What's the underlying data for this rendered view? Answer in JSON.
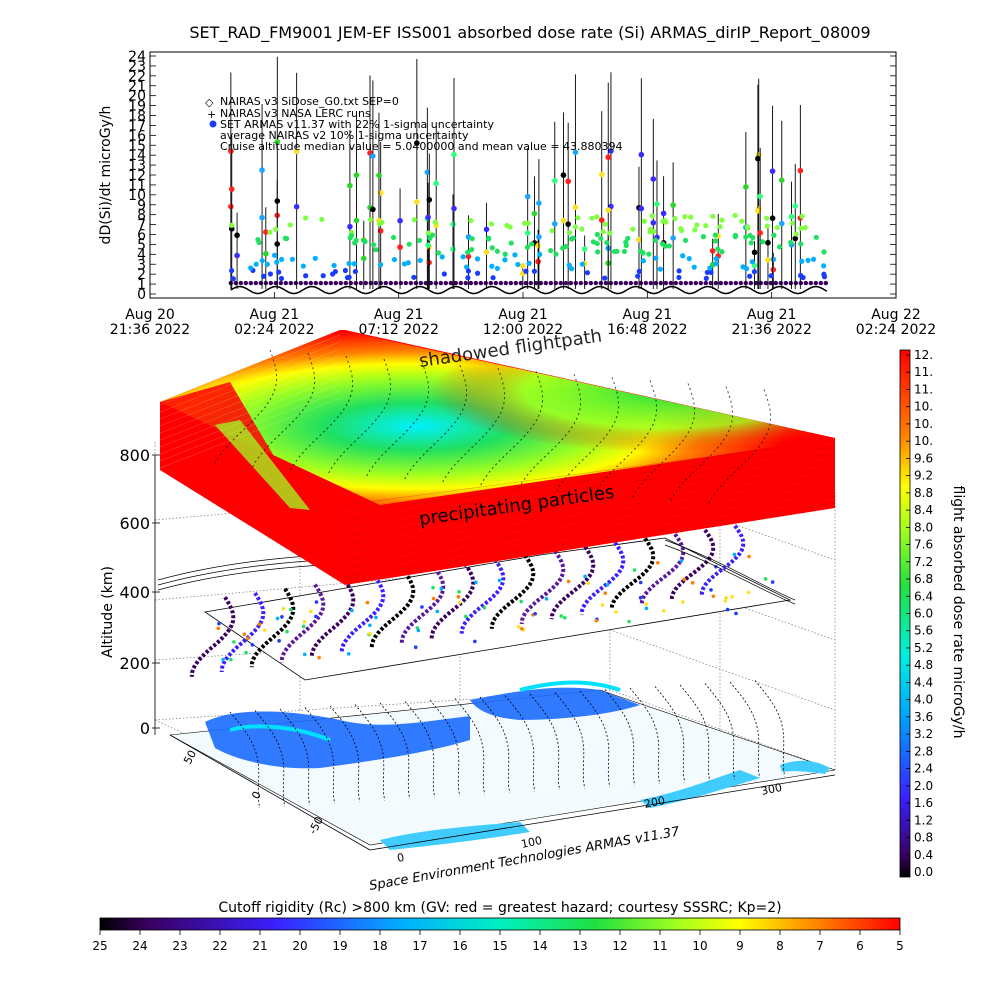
{
  "title": "SET_RAD_FM9001  JEM-EF ISS001 absorbed dose rate (Si) ARMAS_dirIP_Report_08009",
  "chart_data": [
    {
      "type": "scatter",
      "ylabel": "dD(Si)/dt microGy/h",
      "ylim": [
        0,
        24
      ],
      "ytick_labels": [
        "0",
        "1",
        "2",
        "3",
        "4",
        "5",
        "6",
        "7",
        "8",
        "9",
        "10",
        "11",
        "12",
        "13",
        "14",
        "15",
        "16",
        "17",
        "18",
        "19",
        "20",
        "21",
        "22",
        "23",
        "24"
      ],
      "xtick_labels": [
        [
          "Aug 20",
          "21:36 2022"
        ],
        [
          "Aug 21",
          "02:24 2022"
        ],
        [
          "Aug 21",
          "07:12 2022"
        ],
        [
          "Aug 21",
          "12:00 2022"
        ],
        [
          "Aug 21",
          "16:48 2022"
        ],
        [
          "Aug 21",
          "21:36 2022"
        ],
        [
          "Aug 22",
          "02:24 2022"
        ]
      ],
      "legend": [
        "NAIRAS v3 SiDose_G0.txt SEP=0",
        "NAIRAS v3 NASA LERC runs",
        "SET ARMAS v11.37 with 22% 1-sigma uncertainty",
        "average NAIRAS v2 10% 1-sigma uncertainty",
        "Cruise altitude median value = 5.0400000 and mean value = 43.880394"
      ],
      "legend_marker_color": "#1a3cff",
      "annotation_orbit_colors": [
        "#3a2bff",
        "#000000",
        "#ff2020",
        "#2bd62b",
        "#1aa6ff",
        "#30ff80",
        "#ffe020"
      ]
    },
    {
      "type": "scatter",
      "zlabel": "Altitude (km)",
      "ztick_labels": [
        "0",
        "200",
        "400",
        "600",
        "800"
      ],
      "lat_tick_labels": [
        "50",
        "0",
        "-50"
      ],
      "lon_tick_labels": [
        "0",
        "100",
        "200",
        "300"
      ],
      "annotations": [
        "shadowed flightpath",
        "precipitating particles"
      ],
      "credit": "Space Environment Technologies ARMAS v11.37",
      "colorbar_label": "flight absorbed dose rate microGy/h",
      "colorbar_ticks": [
        "12.",
        "11.",
        "11.",
        "10.",
        "10.",
        "10.",
        "9.6",
        "9.2",
        "8.8",
        "8.4",
        "8.0",
        "7.6",
        "7.2",
        "6.8",
        "6.4",
        "6.0",
        "5.6",
        "5.2",
        "4.8",
        "4.4",
        "4.0",
        "3.6",
        "3.2",
        "2.8",
        "2.4",
        "2.0",
        "1.6",
        "1.2",
        "0.8",
        "0.4",
        "0.0"
      ]
    },
    {
      "type": "heatmap",
      "label": "Cutoff rigidity (Rc) >800 km (GV: red = greatest hazard; courtesy SSSRC; Kp=2)",
      "tick_labels": [
        "25",
        "24",
        "23",
        "22",
        "21",
        "20",
        "19",
        "18",
        "17",
        "16",
        "15",
        "14",
        "13",
        "12",
        "11",
        "10",
        "9",
        "8",
        "7",
        "6",
        "5"
      ]
    }
  ]
}
